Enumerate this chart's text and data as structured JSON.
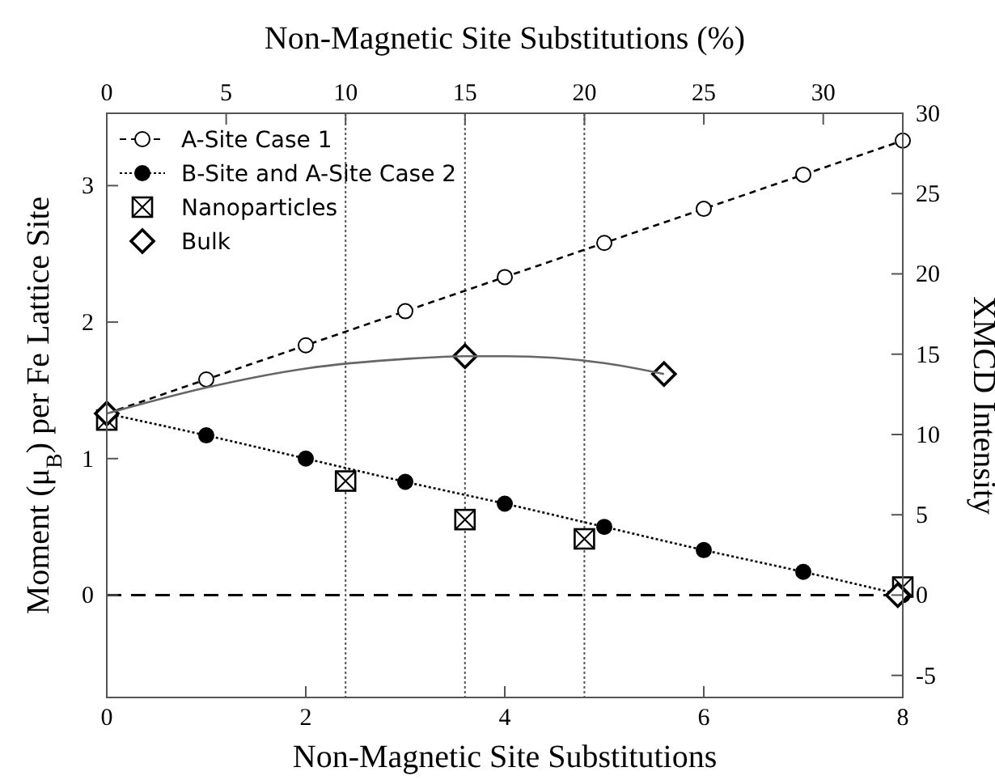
{
  "chart_data": {
    "type": "scatter",
    "xlabel": "Non-Magnetic Site Substitutions",
    "x2label": "Non-Magnetic Site Substitutions (%)",
    "ylabel": "Moment (μ$_{B}$) per Fe Lattice Site",
    "y2label": "XMCD Intensity",
    "xlim": [
      0,
      8
    ],
    "xticks": [
      0,
      2,
      4,
      6,
      8
    ],
    "x2lim": [
      0,
      33.33
    ],
    "x2ticks": [
      0,
      5,
      10,
      15,
      20,
      25,
      30
    ],
    "ylim": [
      -0.75,
      3.53
    ],
    "yticks": [
      0,
      1,
      2,
      3
    ],
    "y2lim": [
      -6.375,
      30
    ],
    "y2ticks": [
      -5,
      0,
      5,
      10,
      15,
      20,
      25,
      30
    ],
    "legend": "top left",
    "series": [
      {
        "name": "A-Site Case 1",
        "type": "line",
        "color": "#000000",
        "marker": "circle-open",
        "line_style": "dashed",
        "x": [
          0,
          1,
          2,
          3,
          4,
          5,
          6,
          7,
          8
        ],
        "values": [
          1.33,
          1.58,
          1.83,
          2.08,
          2.33,
          2.58,
          2.83,
          3.08,
          3.33
        ]
      },
      {
        "name": "B-Site and A-Site Case 2",
        "type": "line",
        "color": "#000000",
        "marker": "circle",
        "line_style": "dotted",
        "x": [
          0,
          1,
          2,
          3,
          4,
          5,
          6,
          7,
          8
        ],
        "values": [
          1.33,
          1.17,
          1.0,
          0.83,
          0.67,
          0.5,
          0.33,
          0.17,
          0.0
        ]
      },
      {
        "name": "Nanoparticles",
        "axis": "y2",
        "color": "#000000",
        "marker": "square-x",
        "x": [
          0,
          2.4,
          3.6,
          4.8,
          8
        ],
        "values": [
          10.9,
          7.1,
          4.7,
          3.5,
          0.5
        ]
      },
      {
        "name": "Bulk",
        "color": "#000000",
        "marker": "diamond",
        "x": [
          0,
          3.6,
          5.6,
          7.95
        ],
        "values": [
          1.33,
          1.75,
          1.62,
          0.0
        ]
      },
      {
        "type": "line",
        "color": "#666666",
        "marker": "none",
        "line_style": "solid",
        "x": [
          0,
          1,
          2,
          3,
          3.6,
          4,
          5,
          5.6
        ],
        "values": [
          1.33,
          1.52,
          1.66,
          1.73,
          1.75,
          1.75,
          1.7,
          1.62
        ]
      }
    ],
    "ref_lines": [
      {
        "axis": "x",
        "value": 2.4,
        "line_style": "dotted",
        "color": "#555555"
      },
      {
        "axis": "x",
        "value": 3.6,
        "line_style": "dotted",
        "color": "#555555"
      },
      {
        "axis": "x",
        "value": 4.8,
        "line_style": "dotted",
        "color": "#555555"
      },
      {
        "axis": "y",
        "value": 0,
        "line_style": "dashed",
        "color": "#000000"
      }
    ]
  }
}
